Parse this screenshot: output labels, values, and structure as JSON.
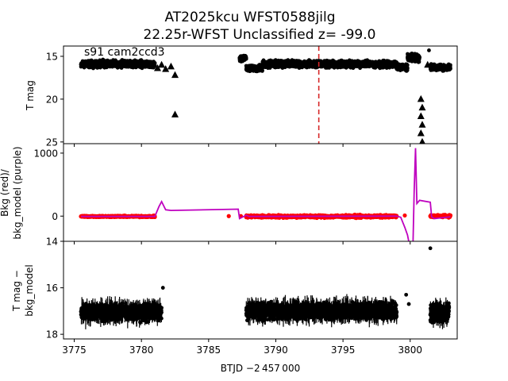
{
  "title": {
    "line1": "AT2025kcu  WFST0588jilg",
    "line2": "22.25r-WFST Unclassified z= -99.0"
  },
  "annotation": "s91 cam2ccd3",
  "xlabel": "BTJD −2 457 000",
  "x_ticks": [
    "3775",
    "3780",
    "3785",
    "3790",
    "3795",
    "3800"
  ],
  "colors": {
    "data": "#000000",
    "bkg": "#ff0000",
    "model": "#bf00bf",
    "marker_line": "#d62728"
  },
  "chart_data": [
    {
      "type": "scatter",
      "panel": "top",
      "ylabel": "T mag",
      "y_ticks": [
        "15",
        "20",
        "25"
      ],
      "ylim": [
        25.2,
        13.8
      ],
      "xlim": [
        3774.2,
        3803.5
      ],
      "vertical_line": {
        "x": 3793.2,
        "style": "dashed"
      },
      "segments": [
        {
          "x_start": 3775.5,
          "x_end": 3781.0,
          "y_mid": 15.9,
          "y_spread": 0.55
        },
        {
          "x_start": 3787.3,
          "x_end": 3787.8,
          "y_mid": 15.2,
          "y_spread": 0.5
        },
        {
          "x_start": 3787.8,
          "x_end": 3789.0,
          "y_mid": 16.4,
          "y_spread": 0.5
        },
        {
          "x_start": 3789.0,
          "x_end": 3799.0,
          "y_mid": 15.9,
          "y_spread": 0.55
        },
        {
          "x_start": 3799.0,
          "x_end": 3799.8,
          "y_mid": 16.3,
          "y_spread": 0.5
        },
        {
          "x_start": 3799.8,
          "x_end": 3800.7,
          "y_mid": 15.2,
          "y_spread": 0.7
        },
        {
          "x_start": 3801.5,
          "x_end": 3803.0,
          "y_mid": 16.3,
          "y_spread": 0.5
        }
      ],
      "upper_limits": [
        {
          "x": 3781.2,
          "y": 16.4
        },
        {
          "x": 3781.5,
          "y": 16.0
        },
        {
          "x": 3781.8,
          "y": 16.5
        },
        {
          "x": 3782.2,
          "y": 16.2
        },
        {
          "x": 3782.5,
          "y": 17.2
        },
        {
          "x": 3782.5,
          "y": 21.8
        },
        {
          "x": 3800.8,
          "y": 20.0
        },
        {
          "x": 3800.9,
          "y": 21.0
        },
        {
          "x": 3800.8,
          "y": 22.0
        },
        {
          "x": 3800.9,
          "y": 23.0
        },
        {
          "x": 3800.8,
          "y": 24.0
        },
        {
          "x": 3800.9,
          "y": 25.0
        },
        {
          "x": 3801.3,
          "y": 16.0
        }
      ],
      "points": [
        {
          "x": 3801.4,
          "y": 14.3
        }
      ]
    },
    {
      "type": "line",
      "panel": "middle",
      "ylabel": "Bkg (red)/\nbkg_model (purple)",
      "y_ticks": [
        "0",
        "1000"
      ],
      "ylim": [
        -400,
        1150
      ],
      "series": [
        {
          "name": "bkg_model",
          "color": "#bf00bf",
          "x": [
            3775.5,
            3781.0,
            3781.3,
            3781.5,
            3781.8,
            3782.2,
            3787.2,
            3787.3,
            3787.8,
            3788.0,
            3799.0,
            3799.3,
            3799.6,
            3799.8,
            3800.0,
            3800.2,
            3800.3,
            3800.4,
            3800.5,
            3800.7,
            3801.5,
            3801.6,
            3801.8,
            3803.0
          ],
          "y": [
            -5,
            -5,
            150,
            230,
            100,
            90,
            110,
            -40,
            15,
            -5,
            0,
            -20,
            -180,
            -300,
            -520,
            -560,
            400,
            1080,
            200,
            250,
            220,
            -10,
            -40,
            -10
          ]
        }
      ],
      "bkg_segments": [
        {
          "x_start": 3775.5,
          "x_end": 3781.0,
          "y_mid": -5,
          "y_spread": 15
        },
        {
          "x_start": 3787.8,
          "x_end": 3799.0,
          "y_mid": -5,
          "y_spread": 30
        },
        {
          "x_start": 3801.5,
          "x_end": 3803.0,
          "y_mid": 0,
          "y_spread": 25
        }
      ],
      "bkg_points": [
        {
          "x": 3786.5,
          "y": 0
        },
        {
          "x": 3787.4,
          "y": 0
        },
        {
          "x": 3799.6,
          "y": 10
        }
      ]
    },
    {
      "type": "scatter",
      "panel": "bottom",
      "ylabel": "T mag −\nbkg_model",
      "y_ticks": [
        "14",
        "16",
        "18"
      ],
      "ylim": [
        18.2,
        14.0
      ],
      "segments": [
        {
          "x_start": 3775.5,
          "x_end": 3781.5,
          "y_mid": 17.05,
          "y_spread": 0.45
        },
        {
          "x_start": 3787.8,
          "x_end": 3799.0,
          "y_mid": 17.0,
          "y_spread": 0.45
        },
        {
          "x_start": 3801.5,
          "x_end": 3802.9,
          "y_mid": 17.1,
          "y_spread": 0.5
        }
      ],
      "points": [
        {
          "x": 3781.6,
          "y": 16.0
        },
        {
          "x": 3799.7,
          "y": 16.3
        },
        {
          "x": 3799.9,
          "y": 16.7
        },
        {
          "x": 3801.5,
          "y": 14.3
        }
      ]
    }
  ]
}
